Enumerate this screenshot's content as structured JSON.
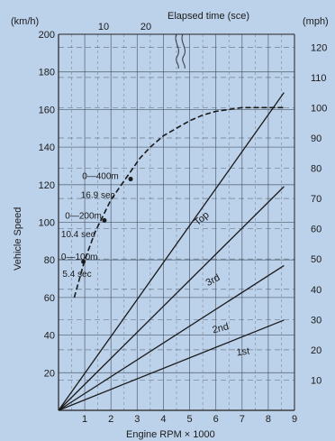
{
  "chart_data": {
    "type": "line",
    "title": "",
    "units_left": "(km/h)",
    "units_right": "(mph)",
    "ylabel": "Vehicle Speed",
    "xlabel": "Engine RPM × 1000",
    "top_axis_label": "Elapsed time (sce)",
    "xlim": [
      0,
      9
    ],
    "ylim": [
      0,
      200
    ],
    "x_ticks": [
      1,
      2,
      3,
      4,
      5,
      6,
      7,
      8,
      9
    ],
    "y_ticks_kmh": [
      20,
      40,
      60,
      80,
      100,
      120,
      140,
      160,
      180,
      200
    ],
    "y_ticks_mph": [
      10,
      20,
      30,
      40,
      50,
      60,
      70,
      80,
      90,
      100,
      110,
      120
    ],
    "top_ticks": [
      "10",
      "20"
    ],
    "grid": true,
    "series": [
      {
        "name": "1st",
        "x": [
          0,
          8.6
        ],
        "y": [
          0,
          48
        ]
      },
      {
        "name": "2nd",
        "x": [
          0,
          8.6
        ],
        "y": [
          0,
          77
        ]
      },
      {
        "name": "3rd",
        "x": [
          0,
          8.6
        ],
        "y": [
          0,
          119
        ]
      },
      {
        "name": "Top",
        "x": [
          0,
          8.6
        ],
        "y": [
          0,
          169
        ]
      },
      {
        "x": [
          0.6,
          1.0,
          1.4,
          2.0,
          2.6,
          3.1,
          3.5,
          4.0,
          4.5,
          5.0,
          5.5,
          6.0,
          6.5,
          7.0,
          7.5,
          8.0,
          8.6
        ],
        "y": [
          60,
          80,
          95,
          112,
          124,
          134,
          140,
          146,
          150,
          154,
          157,
          159,
          160,
          161,
          161,
          161,
          161
        ]
      }
    ],
    "annotations": [
      {
        "text": "0—400m",
        "x": 0.9,
        "y": 123
      },
      {
        "text": "16.9 sec",
        "x": 0.85,
        "y": 113
      },
      {
        "text": "0—200m",
        "x": 0.25,
        "y": 102
      },
      {
        "text": "10.4 sec",
        "x": 0.1,
        "y": 92
      },
      {
        "text": "0—100m",
        "x": 0.1,
        "y": 80
      },
      {
        "text": "5.4 sec",
        "x": 0.15,
        "y": 71
      }
    ]
  }
}
